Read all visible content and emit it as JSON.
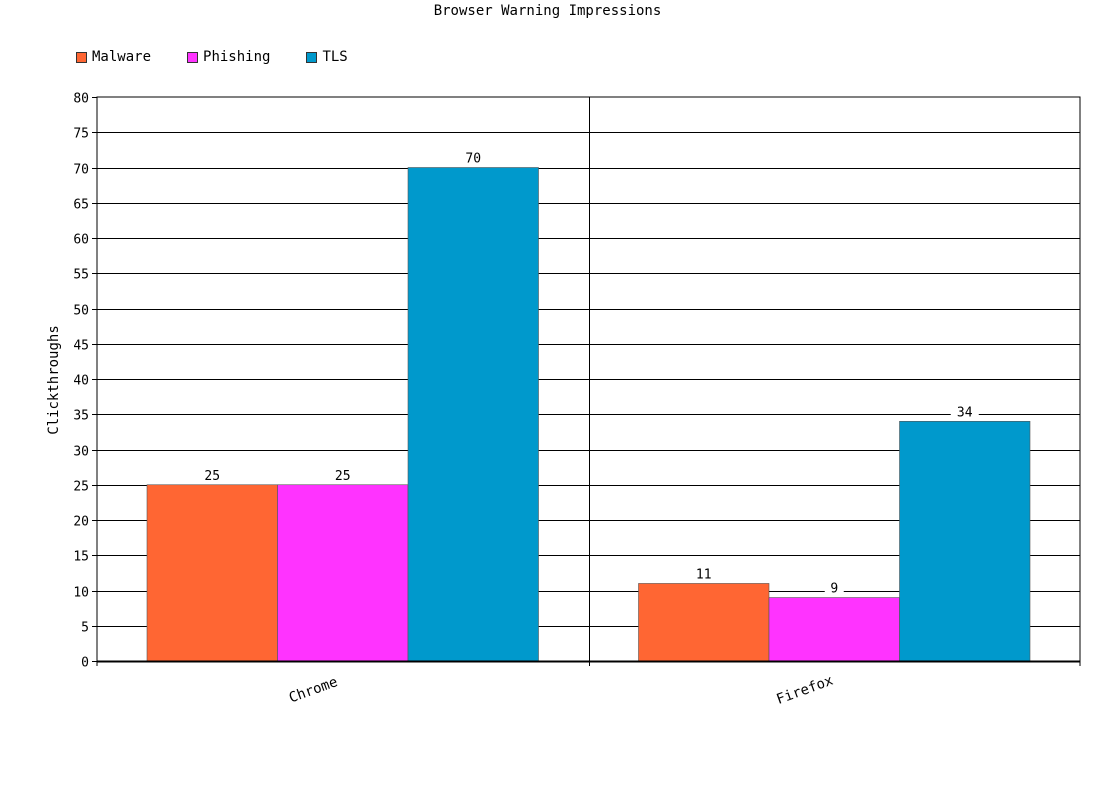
{
  "chart_data": {
    "type": "bar",
    "title": "Browser Warning Impressions",
    "xlabel": "",
    "ylabel": "Clickthroughs",
    "categories": [
      "Chrome",
      "Firefox"
    ],
    "series": [
      {
        "name": "Malware",
        "values": [
          25,
          11
        ],
        "color": "#ff6633"
      },
      {
        "name": "Phishing",
        "values": [
          25,
          9
        ],
        "color": "#ff33ff"
      },
      {
        "name": "TLS",
        "values": [
          70,
          34
        ],
        "color": "#0099cc"
      }
    ],
    "ylim": [
      0,
      80
    ],
    "yticks": [
      0,
      5,
      10,
      15,
      20,
      25,
      30,
      35,
      40,
      45,
      50,
      55,
      60,
      65,
      70,
      75,
      80
    ],
    "grid": true,
    "legend_position": "top-left",
    "data_labels": true
  }
}
